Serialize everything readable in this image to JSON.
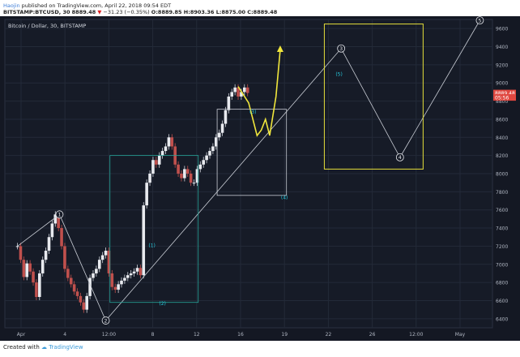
{
  "header": {
    "user": "Haojin",
    "published": "published on TradingView.com, April 22, 2018 09:54 EDT",
    "symbol_line": "BITSTAMP:BTCUSD, 30",
    "last": "8889.48",
    "arrow": "▼",
    "change": "−31.23 (−0.35%)",
    "ohlc": "O:8889.85 H:8903.36 L:8875.00 C:8889.48"
  },
  "footer": {
    "created": "Created with",
    "brand": "TradingView"
  },
  "chart_data": {
    "type": "line",
    "title": "Bitcoin / Dollar, 30, BITSTAMP",
    "x_ticks": [
      "Apr",
      "4",
      "12:00",
      "8",
      "12",
      "16",
      "19",
      "22",
      "26",
      "12:00",
      "May"
    ],
    "y_ticks": [
      6400,
      6600,
      6800,
      7000,
      7200,
      7400,
      7600,
      7800,
      8000,
      8200,
      8400,
      8600,
      8800,
      9000,
      9200,
      9400,
      9600
    ],
    "ylim": [
      6300,
      9700
    ],
    "grid": true,
    "price_labels": [
      {
        "value": 8889.48,
        "text": "8889.48",
        "color": "#e0473f"
      },
      {
        "value": 8840,
        "text": "05:56",
        "color": "#e0473f"
      }
    ],
    "series": [
      {
        "type": "candles",
        "values": [
          [
            6.0,
            7200
          ],
          [
            7.5,
            7050
          ],
          [
            9.0,
            6860
          ],
          [
            10.5,
            7010
          ],
          [
            12.0,
            6920
          ],
          [
            13.5,
            6800
          ],
          [
            15.0,
            6640
          ],
          [
            16.5,
            6900
          ],
          [
            18.0,
            7050
          ],
          [
            19.5,
            7150
          ],
          [
            21.0,
            7300
          ],
          [
            22.5,
            7450
          ],
          [
            24.0,
            7550
          ],
          [
            25.5,
            7400
          ],
          [
            27.0,
            7200
          ],
          [
            28.5,
            6950
          ],
          [
            30.0,
            6850
          ],
          [
            31.5,
            6780
          ],
          [
            33.0,
            6700
          ],
          [
            34.5,
            6650
          ],
          [
            36.0,
            6580
          ],
          [
            37.5,
            6500
          ],
          [
            39.0,
            6650
          ],
          [
            40.5,
            6850
          ],
          [
            42.0,
            6900
          ],
          [
            43.5,
            6950
          ],
          [
            45.0,
            7050
          ],
          [
            46.5,
            7100
          ],
          [
            48.0,
            7150
          ],
          [
            49.5,
            6900
          ],
          [
            51.0,
            6750
          ],
          [
            52.5,
            6720
          ],
          [
            54.0,
            6780
          ],
          [
            55.5,
            6820
          ],
          [
            57.0,
            6850
          ],
          [
            58.5,
            6880
          ],
          [
            60.0,
            6900
          ],
          [
            61.5,
            6920
          ],
          [
            63.0,
            6960
          ],
          [
            64.5,
            6880
          ],
          [
            66.0,
            7650
          ],
          [
            67.5,
            7900
          ],
          [
            69.0,
            8000
          ],
          [
            70.5,
            8150
          ],
          [
            72.0,
            8100
          ],
          [
            73.5,
            8200
          ],
          [
            75.0,
            8250
          ],
          [
            76.5,
            8300
          ],
          [
            78.0,
            8400
          ],
          [
            79.5,
            8300
          ],
          [
            81.0,
            8100
          ],
          [
            82.5,
            8000
          ],
          [
            84.0,
            7950
          ],
          [
            85.5,
            8050
          ],
          [
            87.0,
            8000
          ],
          [
            88.5,
            7900
          ],
          [
            90.0,
            7900
          ],
          [
            91.5,
            8050
          ],
          [
            93.0,
            8100
          ],
          [
            94.5,
            8150
          ],
          [
            96.0,
            8200
          ],
          [
            97.5,
            8250
          ],
          [
            99.0,
            8300
          ],
          [
            100.5,
            8400
          ],
          [
            102.0,
            8450
          ],
          [
            103.5,
            8550
          ],
          [
            105.0,
            8700
          ],
          [
            106.5,
            8850
          ],
          [
            108.0,
            8900
          ],
          [
            109.5,
            8950
          ],
          [
            111.0,
            8850
          ],
          [
            112.5,
            8900
          ],
          [
            114.0,
            8950
          ],
          [
            115.5,
            8889.48
          ]
        ]
      },
      {
        "type": "projection",
        "color": "#f0e63c",
        "values": [
          [
            111,
            8960
          ],
          [
            116,
            8780
          ],
          [
            120,
            8420
          ],
          [
            122,
            8480
          ],
          [
            124,
            8600
          ],
          [
            126,
            8420
          ],
          [
            129,
            8850
          ],
          [
            131,
            9360
          ]
        ]
      }
    ],
    "annotations": [
      {
        "text": "1",
        "style": "circle",
        "x": 26,
        "y": 7550
      },
      {
        "text": "2",
        "style": "circle",
        "x": 48,
        "y": 6380
      },
      {
        "text": "3",
        "style": "circle",
        "x": 160,
        "y": 9380
      },
      {
        "text": "4",
        "style": "circle",
        "x": 188,
        "y": 8180
      },
      {
        "text": "5",
        "style": "circle",
        "x": 226,
        "y": 9690
      },
      {
        "text": "(1)",
        "style": "sub",
        "x": 70,
        "y": 7190
      },
      {
        "text": "(2)",
        "style": "sub",
        "x": 75,
        "y": 6550
      },
      {
        "text": "(3)",
        "style": "sub",
        "x": 118,
        "y": 8660
      },
      {
        "text": "(4)",
        "style": "sub",
        "x": 133,
        "y": 7720
      },
      {
        "text": "(5)",
        "style": "sub",
        "x": 159,
        "y": 9080
      }
    ]
  }
}
